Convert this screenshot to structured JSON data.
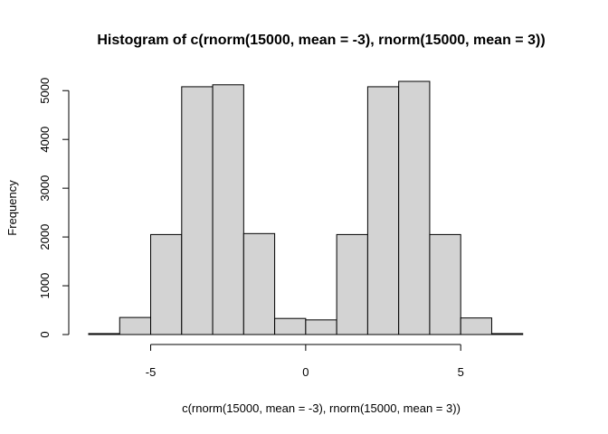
{
  "chart_data": {
    "type": "bar",
    "title": "Histogram of c(rnorm(15000, mean = -3), rnorm(15000, mean = 3))",
    "xlabel": "c(rnorm(15000, mean = -3), rnorm(15000, mean = 3))",
    "ylabel": "Frequency",
    "bins": [
      {
        "x0": -7,
        "x1": -6,
        "count": 20
      },
      {
        "x0": -6,
        "x1": -5,
        "count": 350
      },
      {
        "x0": -5,
        "x1": -4,
        "count": 2050
      },
      {
        "x0": -4,
        "x1": -3,
        "count": 5080
      },
      {
        "x0": -3,
        "x1": -2,
        "count": 5120
      },
      {
        "x0": -2,
        "x1": -1,
        "count": 2070
      },
      {
        "x0": -1,
        "x1": 0,
        "count": 330
      },
      {
        "x0": 0,
        "x1": 1,
        "count": 300
      },
      {
        "x0": 1,
        "x1": 2,
        "count": 2050
      },
      {
        "x0": 2,
        "x1": 3,
        "count": 5080
      },
      {
        "x0": 3,
        "x1": 4,
        "count": 5190
      },
      {
        "x0": 4,
        "x1": 5,
        "count": 2050
      },
      {
        "x0": 5,
        "x1": 6,
        "count": 340
      },
      {
        "x0": 6,
        "x1": 7,
        "count": 20
      },
      {
        "x0": 7,
        "x1": 8,
        "count": 0
      }
    ],
    "xlim": [
      -7,
      8
    ],
    "ylim": [
      0,
      5190
    ],
    "x_ticks": [
      -5,
      0,
      5
    ],
    "x_tick_labels": [
      "-5",
      "0",
      "5"
    ],
    "y_ticks": [
      0,
      1000,
      2000,
      3000,
      4000,
      5000
    ],
    "y_tick_labels": [
      "0",
      "1000",
      "2000",
      "3000",
      "4000",
      "5000"
    ],
    "bar_color": "#d3d3d3",
    "grid": false,
    "legend": "none"
  }
}
